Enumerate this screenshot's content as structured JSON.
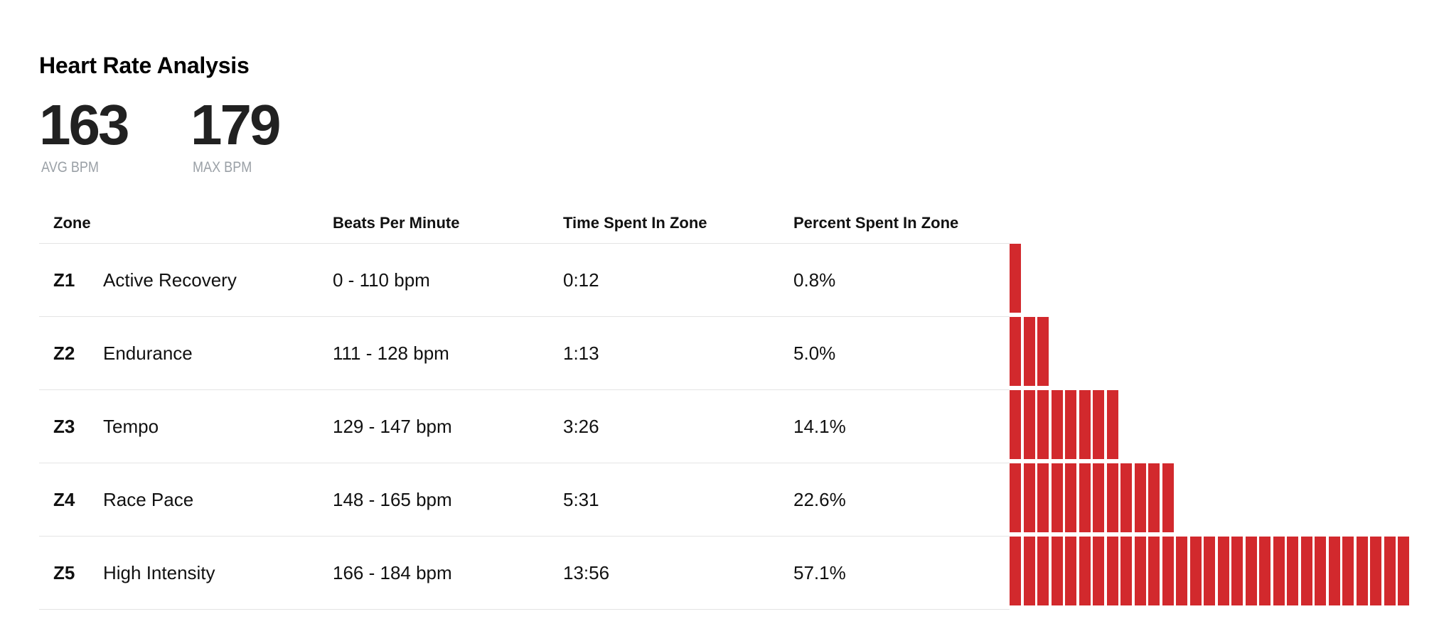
{
  "title": "Heart Rate Analysis",
  "stats": {
    "avg": {
      "value": "163",
      "label": "AVG BPM"
    },
    "max": {
      "value": "179",
      "label": "MAX BPM"
    }
  },
  "table": {
    "headers": {
      "zone": "Zone",
      "bpm": "Beats Per Minute",
      "time": "Time Spent In Zone",
      "percent": "Percent Spent In Zone"
    },
    "rows": [
      {
        "code": "Z1",
        "name": "Active Recovery",
        "bpm": "0 - 110 bpm",
        "time": "0:12",
        "percent": "0.8%",
        "segments": 1
      },
      {
        "code": "Z2",
        "name": "Endurance",
        "bpm": "111 - 128 bpm",
        "time": "1:13",
        "percent": "5.0%",
        "segments": 3
      },
      {
        "code": "Z3",
        "name": "Tempo",
        "bpm": "129 - 147 bpm",
        "time": "3:26",
        "percent": "14.1%",
        "segments": 8
      },
      {
        "code": "Z4",
        "name": "Race Pace",
        "bpm": "148 - 165 bpm",
        "time": "5:31",
        "percent": "22.6%",
        "segments": 12
      },
      {
        "code": "Z5",
        "name": "High Intensity",
        "bpm": "166 - 184 bpm",
        "time": "13:56",
        "percent": "57.1%",
        "segments": 29
      }
    ]
  },
  "colors": {
    "bar": "#d2292d",
    "divider": "#e4e4e4",
    "muted": "#9aa0a6"
  }
}
